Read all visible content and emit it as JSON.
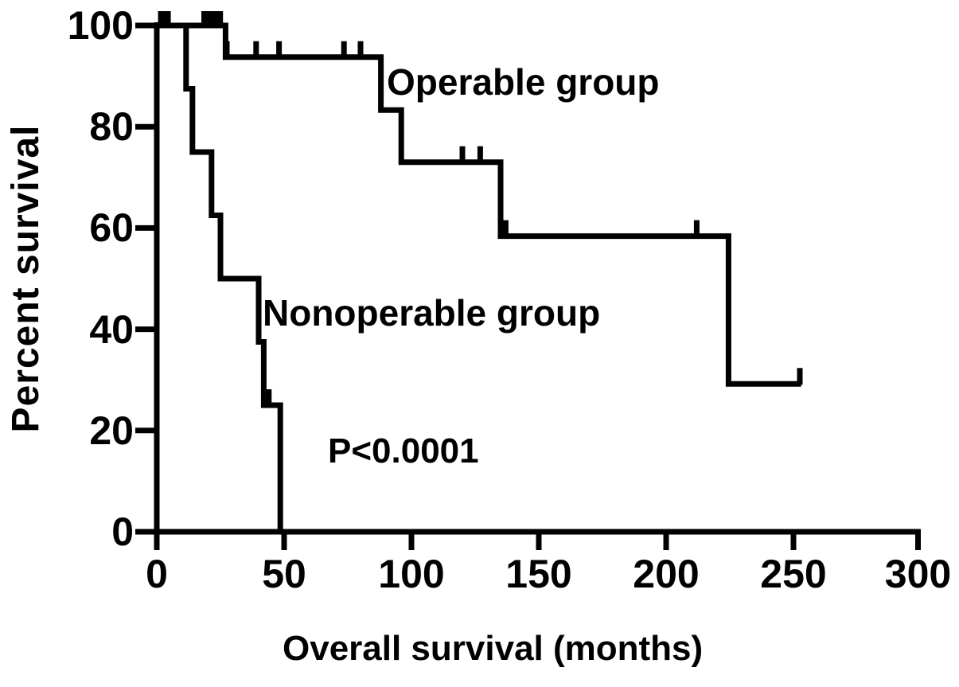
{
  "figure": {
    "ylabel": "Percent survival",
    "xlabel": "Overall survival (months)",
    "p_value_label": "P<0.0001",
    "series_labels": {
      "operable": "Operable group",
      "nonoperable": "Nonoperable group"
    },
    "background_color": "#ffffff",
    "ink_color": "#000000"
  },
  "chart_data": {
    "type": "line",
    "subtype": "kaplan-meier-step",
    "title": "",
    "xlabel": "Overall survival (months)",
    "ylabel": "Percent survival",
    "xlim": [
      0,
      300
    ],
    "ylim": [
      0,
      100
    ],
    "x_ticks": [
      0,
      50,
      100,
      150,
      200,
      250,
      300
    ],
    "y_ticks": [
      0,
      20,
      40,
      60,
      80,
      100
    ],
    "grid": false,
    "legend_position": "inline-labels",
    "annotation": "P<0.0001",
    "series": [
      {
        "name": "Operable group",
        "color": "#000000",
        "steps": [
          [
            0,
            100
          ],
          [
            27,
            100
          ],
          [
            27,
            93.75
          ],
          [
            88,
            93.75
          ],
          [
            88,
            83.3
          ],
          [
            96,
            83.3
          ],
          [
            96,
            73
          ],
          [
            135,
            73
          ],
          [
            135,
            58.4
          ],
          [
            224.5,
            58.4
          ],
          [
            224.5,
            29.2
          ],
          [
            253,
            29.2
          ]
        ],
        "censor_squares": [
          [
            3,
            100
          ],
          [
            20,
            100
          ],
          [
            23.5,
            100
          ]
        ],
        "censor_ticks": [
          [
            27.5,
            93.75
          ],
          [
            39,
            93.75
          ],
          [
            48,
            93.75
          ],
          [
            73.5,
            93.75
          ],
          [
            80,
            93.75
          ],
          [
            120,
            73
          ],
          [
            127,
            73
          ],
          [
            137,
            58.4
          ],
          [
            212,
            58.4
          ],
          [
            252.5,
            29.2
          ]
        ]
      },
      {
        "name": "Nonoperable group",
        "color": "#000000",
        "steps": [
          [
            0,
            100
          ],
          [
            11.5,
            100
          ],
          [
            11.5,
            87.5
          ],
          [
            14,
            87.5
          ],
          [
            14,
            75
          ],
          [
            21.5,
            75
          ],
          [
            21.5,
            62.5
          ],
          [
            25,
            62.5
          ],
          [
            25,
            50
          ],
          [
            40,
            50
          ],
          [
            40,
            37.5
          ],
          [
            42,
            37.5
          ],
          [
            42,
            25
          ],
          [
            48.5,
            25
          ],
          [
            48.5,
            0
          ]
        ],
        "censor_squares": [],
        "censor_ticks": [
          [
            44,
            25
          ]
        ]
      }
    ]
  }
}
